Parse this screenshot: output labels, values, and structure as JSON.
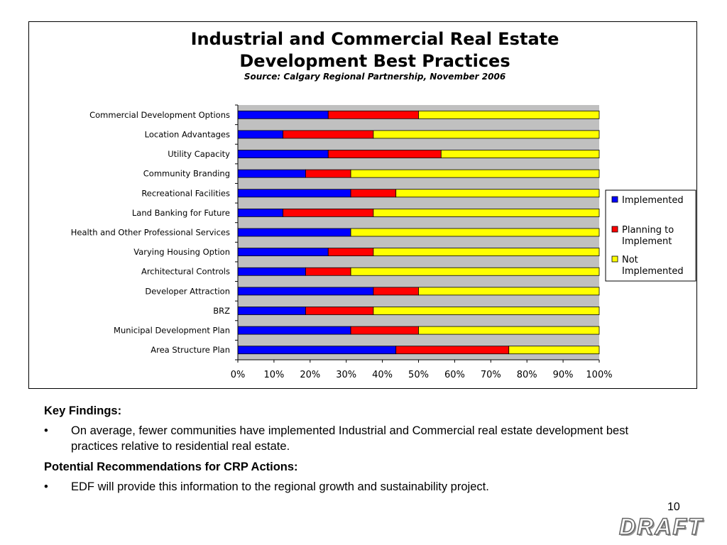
{
  "chart_data": {
    "type": "bar",
    "orientation": "horizontal",
    "stacked": "percent",
    "title": "Industrial and Commercial Real Estate Development Best Practices",
    "title_lines": [
      "Industrial and Commercial Real Estate",
      "Development Best Practices"
    ],
    "subtitle": "Source: Calgary Regional Partnership, November 2006",
    "categories": [
      "Commercial Development Options",
      "Location Advantages",
      "Utility Capacity",
      "Community Branding",
      "Recreational Facilities",
      "Land Banking for Future",
      "Health and Other Professional Services",
      "Varying Housing Option",
      "Architectural Controls",
      "Developer Attraction",
      "BRZ",
      "Municipal Development Plan",
      "Area Structure Plan"
    ],
    "series": [
      {
        "name": "Implemented",
        "color": "#0000ff",
        "values": [
          25,
          12.5,
          25,
          18.75,
          31.25,
          12.5,
          31.25,
          25,
          18.75,
          37.5,
          18.75,
          31.25,
          43.75
        ]
      },
      {
        "name": "Planning to Implement",
        "color": "#ff0000",
        "values": [
          25,
          25,
          31.25,
          12.5,
          12.5,
          25,
          0,
          12.5,
          12.5,
          12.5,
          18.75,
          18.75,
          31.25
        ]
      },
      {
        "name": "Not Implemented",
        "color": "#ffff00",
        "values": [
          50,
          62.5,
          43.75,
          68.75,
          56.25,
          62.5,
          68.75,
          62.5,
          68.75,
          50,
          62.5,
          50,
          25
        ]
      }
    ],
    "legend_lines": [
      [
        "Implemented"
      ],
      [
        "Planning to",
        "Implement"
      ],
      [
        "Not",
        "Implemented"
      ]
    ],
    "xticks": [
      "0%",
      "10%",
      "20%",
      "30%",
      "40%",
      "50%",
      "60%",
      "70%",
      "80%",
      "90%",
      "100%"
    ],
    "xlim": [
      0,
      100
    ],
    "plot_background": "#c0c0c0",
    "legend_position": "right"
  },
  "notes": {
    "key_findings_heading": "Key Findings:",
    "key_findings": [
      "On average, fewer communities have implemented Industrial and Commercial real estate development best practices relative to residential real estate."
    ],
    "recommendations_heading": "Potential Recommendations for CRP Actions:",
    "recommendations": [
      "EDF will provide this information to the regional growth and sustainability project."
    ],
    "bullet_glyph": "•"
  },
  "page_number": "10",
  "stamp": "DRAFT"
}
